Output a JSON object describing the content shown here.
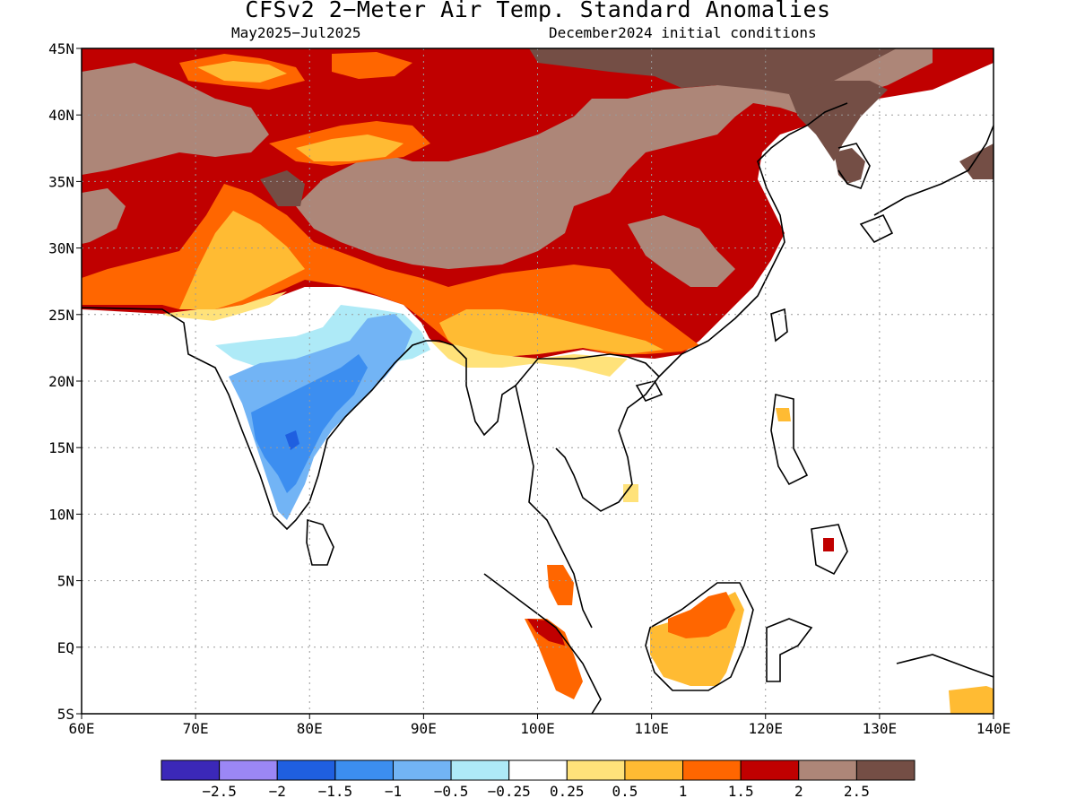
{
  "title": "CFSv2 2−Meter Air Temp. Standard Anomalies",
  "period": "May2025−Jul2025",
  "initial_conditions": "December2024 initial conditions",
  "map": {
    "lon_range": [
      60,
      140
    ],
    "lat_range": [
      -5,
      45
    ],
    "lon_ticks": [
      {
        "value": 60,
        "label": "60E"
      },
      {
        "value": 70,
        "label": "70E"
      },
      {
        "value": 80,
        "label": "80E"
      },
      {
        "value": 90,
        "label": "90E"
      },
      {
        "value": 100,
        "label": "100E"
      },
      {
        "value": 110,
        "label": "110E"
      },
      {
        "value": 120,
        "label": "120E"
      },
      {
        "value": 130,
        "label": "130E"
      },
      {
        "value": 140,
        "label": "140E"
      }
    ],
    "lat_ticks": [
      {
        "value": 45,
        "label": "45N"
      },
      {
        "value": 40,
        "label": "40N"
      },
      {
        "value": 35,
        "label": "35N"
      },
      {
        "value": 30,
        "label": "30N"
      },
      {
        "value": 25,
        "label": "25N"
      },
      {
        "value": 20,
        "label": "20N"
      },
      {
        "value": 15,
        "label": "15N"
      },
      {
        "value": 10,
        "label": "10N"
      },
      {
        "value": 5,
        "label": "5N"
      },
      {
        "value": 0,
        "label": "EQ"
      },
      {
        "value": -5,
        "label": "5S"
      }
    ],
    "grid": "dotted"
  },
  "colorbar": {
    "colors": [
      "#3b28b8",
      "#9b87f5",
      "#1f5fe0",
      "#3c8ef0",
      "#72b4f5",
      "#aeeaf7",
      "#ffffff",
      "#ffe27a",
      "#ffbb33",
      "#ff6600",
      "#c00000",
      "#ad8678",
      "#744e45"
    ],
    "labels": [
      "−2.5",
      "−2",
      "−1.5",
      "−1",
      "−0.5",
      "−0.25",
      "0.25",
      "0.5",
      "1",
      "1.5",
      "2",
      "2.5"
    ]
  }
}
